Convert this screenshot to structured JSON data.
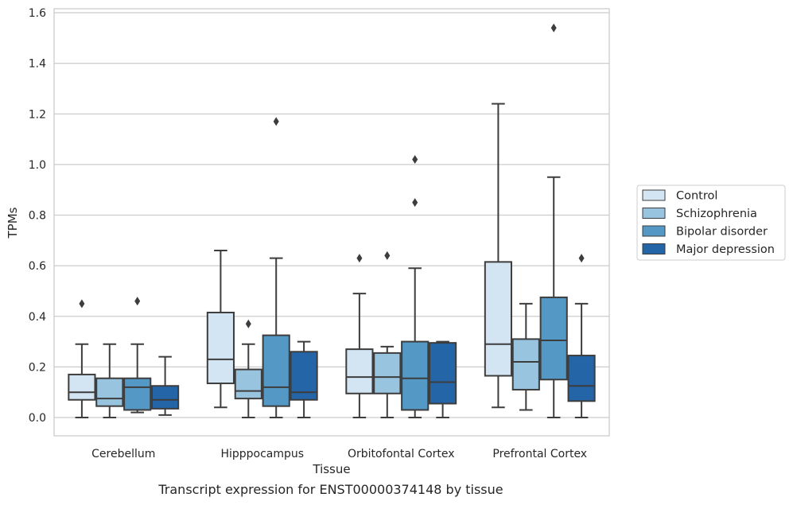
{
  "caption": "Transcript expression for ENST00000374148 by tissue",
  "chart_data": {
    "type": "box",
    "xlabel": "Tissue",
    "ylabel": "TPMs",
    "ylim": [
      -0.075,
      1.62
    ],
    "yticks": [
      0.0,
      0.2,
      0.4,
      0.6,
      0.8,
      1.0,
      1.2,
      1.4,
      1.6
    ],
    "ytick_labels": [
      "0.0",
      "0.2",
      "0.4",
      "0.6",
      "0.8",
      "1.0",
      "1.2",
      "1.4",
      "1.6"
    ],
    "grid": "horizontal",
    "legend_position": "right",
    "categories": [
      "Cerebellum",
      "Hipppocampus",
      "Orbitofontal Cortex",
      "Prefrontal Cortex"
    ],
    "series": [
      {
        "name": "Control",
        "color": "#d3e4f3",
        "boxes": [
          {
            "whislo": 0.0,
            "q1": 0.07,
            "med": 0.1,
            "q3": 0.17,
            "whishi": 0.29,
            "fliers": [
              0.45
            ]
          },
          {
            "whislo": 0.04,
            "q1": 0.135,
            "med": 0.23,
            "q3": 0.415,
            "whishi": 0.66,
            "fliers": []
          },
          {
            "whislo": 0.0,
            "q1": 0.095,
            "med": 0.16,
            "q3": 0.27,
            "whishi": 0.49,
            "fliers": [
              0.63
            ]
          },
          {
            "whislo": 0.04,
            "q1": 0.165,
            "med": 0.29,
            "q3": 0.615,
            "whishi": 1.24,
            "fliers": []
          }
        ]
      },
      {
        "name": "Schizophrenia",
        "color": "#99c4df",
        "boxes": [
          {
            "whislo": 0.0,
            "q1": 0.045,
            "med": 0.075,
            "q3": 0.155,
            "whishi": 0.29,
            "fliers": []
          },
          {
            "whislo": 0.0,
            "q1": 0.075,
            "med": 0.105,
            "q3": 0.19,
            "whishi": 0.29,
            "fliers": [
              0.37
            ]
          },
          {
            "whislo": 0.0,
            "q1": 0.095,
            "med": 0.16,
            "q3": 0.255,
            "whishi": 0.28,
            "fliers": [
              0.64
            ]
          },
          {
            "whislo": 0.03,
            "q1": 0.11,
            "med": 0.22,
            "q3": 0.31,
            "whishi": 0.45,
            "fliers": []
          }
        ]
      },
      {
        "name": "Bipolar disorder",
        "color": "#5499c6",
        "boxes": [
          {
            "whislo": 0.02,
            "q1": 0.03,
            "med": 0.12,
            "q3": 0.155,
            "whishi": 0.29,
            "fliers": [
              0.46
            ]
          },
          {
            "whislo": 0.0,
            "q1": 0.045,
            "med": 0.12,
            "q3": 0.325,
            "whishi": 0.63,
            "fliers": [
              1.17
            ]
          },
          {
            "whislo": 0.0,
            "q1": 0.03,
            "med": 0.155,
            "q3": 0.3,
            "whishi": 0.59,
            "fliers": [
              0.85,
              1.02
            ]
          },
          {
            "whislo": 0.0,
            "q1": 0.15,
            "med": 0.305,
            "q3": 0.475,
            "whishi": 0.95,
            "fliers": [
              1.54
            ]
          }
        ]
      },
      {
        "name": "Major depression",
        "color": "#2465a8",
        "boxes": [
          {
            "whislo": 0.01,
            "q1": 0.035,
            "med": 0.07,
            "q3": 0.125,
            "whishi": 0.24,
            "fliers": []
          },
          {
            "whislo": 0.0,
            "q1": 0.07,
            "med": 0.1,
            "q3": 0.26,
            "whishi": 0.3,
            "fliers": []
          },
          {
            "whislo": 0.0,
            "q1": 0.055,
            "med": 0.14,
            "q3": 0.295,
            "whishi": 0.3,
            "fliers": []
          },
          {
            "whislo": 0.0,
            "q1": 0.065,
            "med": 0.125,
            "q3": 0.245,
            "whishi": 0.45,
            "fliers": [
              0.63
            ]
          }
        ]
      }
    ]
  }
}
